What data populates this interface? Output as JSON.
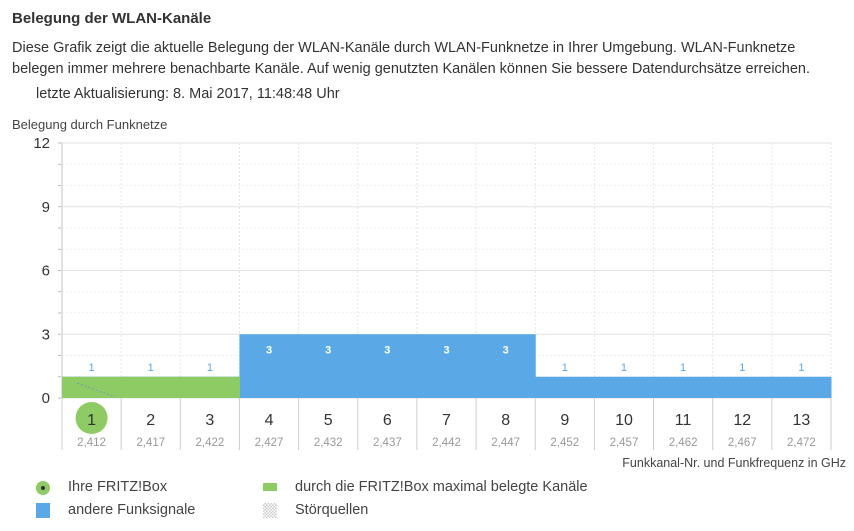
{
  "header": {
    "title": "Belegung der WLAN-Kanäle",
    "description": "Diese Grafik zeigt die aktuelle Belegung der WLAN-Kanäle durch WLAN-Funknetze in Ihrer Umgebung. WLAN-Funknetze belegen immer mehrere benachbarte Kanäle. Auf wenig genutzten Kanälen können Sie bessere Datendurchsätze erreichen.",
    "last_update": "letzte Aktualisierung: 8. Mai 2017, 11:48:48 Uhr"
  },
  "chart_data": {
    "type": "bar",
    "ylabel": "Belegung durch Funknetze",
    "xlabel": "Funkkanal-Nr. und Funkfrequenz in GHz",
    "ylim": [
      0,
      12
    ],
    "yticks": [
      "0",
      "3",
      "6",
      "9",
      "12"
    ],
    "categories": [
      "1",
      "2",
      "3",
      "4",
      "5",
      "6",
      "7",
      "8",
      "9",
      "10",
      "11",
      "12",
      "13"
    ],
    "frequencies": [
      "2,412",
      "2,417",
      "2,422",
      "2,427",
      "2,432",
      "2,437",
      "2,442",
      "2,447",
      "2,452",
      "2,457",
      "2,462",
      "2,467",
      "2,472"
    ],
    "series": [
      {
        "name": "andere Funksignale",
        "color": "#5aa9e6",
        "values": [
          1,
          1,
          1,
          3,
          3,
          3,
          3,
          3,
          1,
          1,
          1,
          1,
          1
        ]
      },
      {
        "name": "durch die FRITZ!Box maximal belegte Kanäle",
        "color": "#8fcb65",
        "values": [
          1,
          1,
          1,
          0,
          0,
          0,
          0,
          0,
          0,
          0,
          0,
          0,
          0
        ]
      }
    ],
    "labels": [
      "1",
      "1",
      "1",
      "3",
      "3",
      "3",
      "3",
      "3",
      "1",
      "1",
      "1",
      "1",
      "1"
    ],
    "fritzbox_channel": "1"
  },
  "legend": {
    "fritzbox": "Ihre FRITZ!Box",
    "other": "andere Funksignale",
    "max": "durch die FRITZ!Box maximal belegte Kanäle",
    "interference": "Störquellen"
  }
}
